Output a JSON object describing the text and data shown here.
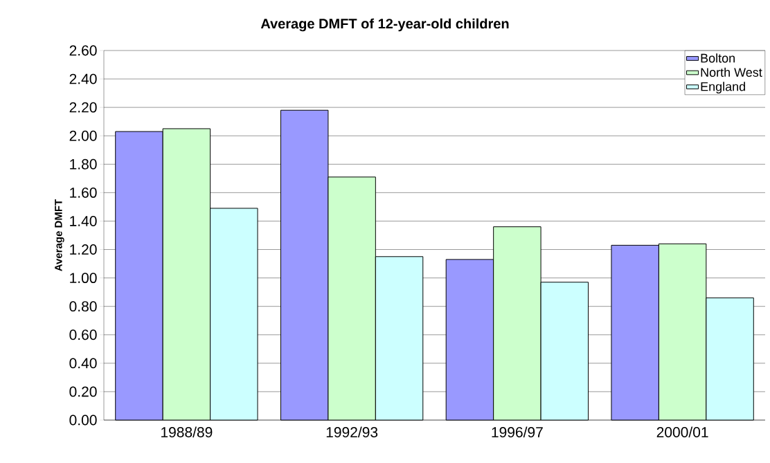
{
  "chart_data": {
    "type": "bar",
    "title": "Average DMFT of 12-year-old children",
    "ylabel": "Average DMFT",
    "categories": [
      "1988/89",
      "1992/93",
      "1996/97",
      "2000/01"
    ],
    "series": [
      {
        "name": "Bolton",
        "color": "#9999ff",
        "values": [
          2.03,
          2.18,
          1.13,
          1.23
        ]
      },
      {
        "name": "North West",
        "color": "#ccffcc",
        "values": [
          2.05,
          1.71,
          1.36,
          1.24
        ]
      },
      {
        "name": "England",
        "color": "#ccffff",
        "values": [
          1.49,
          1.15,
          0.97,
          0.86
        ]
      }
    ],
    "ylim": [
      0,
      2.6
    ],
    "yticks": [
      {
        "value": 0,
        "label": "0.00"
      },
      {
        "value": 0.2,
        "label": "0.20"
      },
      {
        "value": 0.4,
        "label": "0.40"
      },
      {
        "value": 0.6,
        "label": "0.60"
      },
      {
        "value": 0.8,
        "label": "0.80"
      },
      {
        "value": 1.0,
        "label": "1.00"
      },
      {
        "value": 1.2,
        "label": "1.20"
      },
      {
        "value": 1.4,
        "label": "1.40"
      },
      {
        "value": 1.6,
        "label": "1.60"
      },
      {
        "value": 1.8,
        "label": "1.80"
      },
      {
        "value": 2.0,
        "label": "2.00"
      },
      {
        "value": 2.2,
        "label": "2.20"
      },
      {
        "value": 2.4,
        "label": "2.40"
      },
      {
        "value": 2.6,
        "label": "2.60"
      }
    ],
    "grid": "y",
    "legend": "top right"
  }
}
